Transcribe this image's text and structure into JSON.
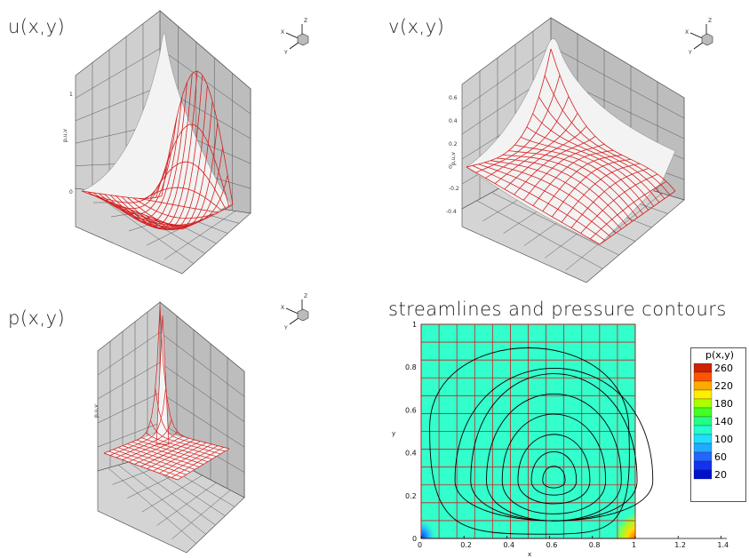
{
  "panels": {
    "u": {
      "title": "u(x,y)"
    },
    "v": {
      "title": "v(x,y)"
    },
    "p": {
      "title": "p(x,y)"
    },
    "s": {
      "title": "streamlines and pressure contours"
    }
  },
  "triad": {
    "z": "Z",
    "x": "X",
    "y": "Y"
  },
  "surface_colors": {
    "wall": "#c8c8c8",
    "grid": "#333333",
    "mesh": "#d62020",
    "surface": "#f2f2f2",
    "field": "#33ffcc"
  },
  "chart_data": [
    {
      "type": "surface",
      "title": "u(x,y)",
      "zlabel": "p,u,v",
      "ztick_labels": [
        "0",
        "1"
      ],
      "xtick_labels": [
        "1",
        "0.8",
        "0.6",
        "0.4",
        "0.2",
        "0"
      ],
      "ytick_labels": [
        "0",
        "0.2",
        "0.4",
        "0.6",
        "0.8",
        "1"
      ],
      "xlabel": "x",
      "ylabel": "y"
    },
    {
      "type": "surface",
      "title": "v(x,y)",
      "zlabel": "p,u,v",
      "ztick_labels": [
        "0.6",
        "0.4",
        "0.2",
        "0",
        "-0.2",
        "-0.4"
      ],
      "xtick_labels": [
        "1",
        "0.8",
        "0.6",
        "0.4",
        "0.2",
        "0"
      ],
      "ytick_labels": [
        "0",
        "0.2",
        "0.4",
        "0.6",
        "0.8",
        "1"
      ],
      "xlabel": "x",
      "ylabel": "y"
    },
    {
      "type": "surface",
      "title": "p(x,y)",
      "zlabel": "p,u,v",
      "xlabel": "x",
      "ylabel": "y"
    },
    {
      "type": "contour",
      "title": "streamlines and pressure contours",
      "xlabel": "x",
      "ylabel": "y",
      "xlim": [
        0,
        1.4
      ],
      "ylim": [
        0,
        1
      ],
      "xticks": [
        "0",
        "0.2",
        "0.4",
        "0.6",
        "0.8",
        "1",
        "1.2",
        "1.4"
      ],
      "yticks": [
        "0",
        "0.2",
        "0.4",
        "0.6",
        "0.8",
        "1"
      ],
      "vortex_center": [
        0.62,
        0.27
      ],
      "legend": {
        "title": "p(x,y)",
        "levels": [
          {
            "value": "260",
            "color": "#cc2200"
          },
          {
            "value": "240",
            "color": "#ff5500"
          },
          {
            "value": "220",
            "color": "#ffaa00"
          },
          {
            "value": "200",
            "color": "#ffee00"
          },
          {
            "value": "180",
            "color": "#aaff00"
          },
          {
            "value": "160",
            "color": "#44ff22"
          },
          {
            "value": "140",
            "color": "#22ff88"
          },
          {
            "value": "120",
            "color": "#22ffcc"
          },
          {
            "value": "100",
            "color": "#22ddff"
          },
          {
            "value": "80",
            "color": "#22aaff"
          },
          {
            "value": "60",
            "color": "#2266ff"
          },
          {
            "value": "40",
            "color": "#1133ee"
          },
          {
            "value": "20",
            "color": "#0011cc"
          }
        ],
        "labeled": [
          "260",
          "220",
          "180",
          "140",
          "100",
          "60",
          "20"
        ]
      }
    }
  ]
}
